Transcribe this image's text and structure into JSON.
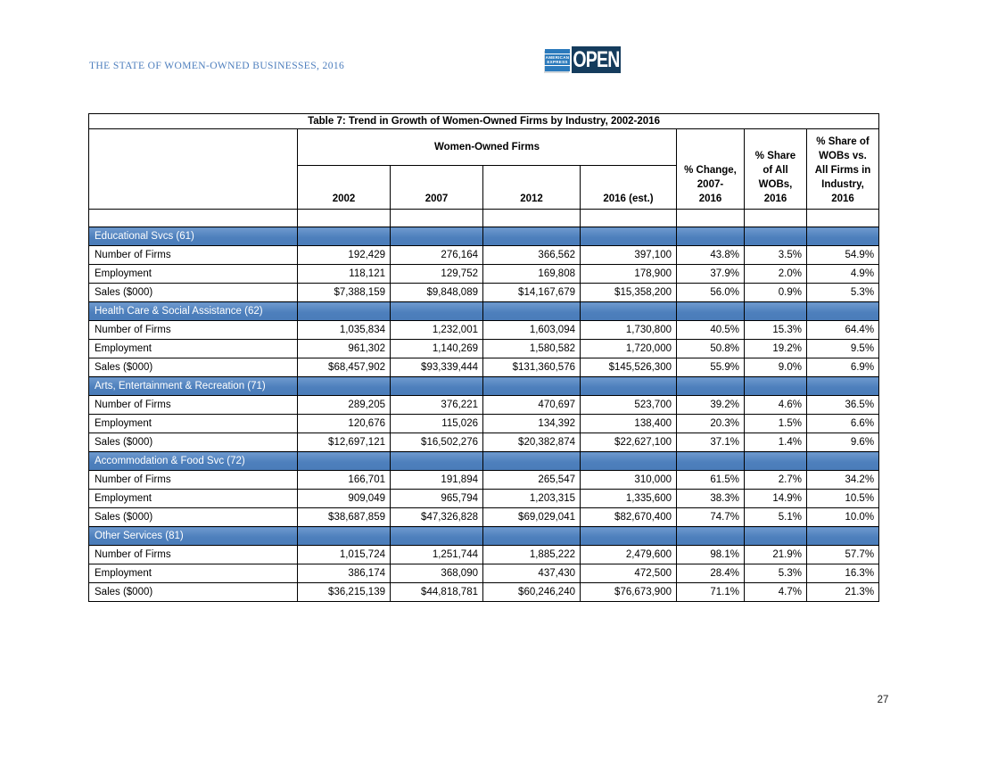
{
  "page": {
    "header_title": "THE STATE OF WOMEN-OWNED BUSINESSES, 2016",
    "page_number": "27",
    "logo": {
      "brand_line1": "AMERICAN",
      "brand_line2": "EXPRESS",
      "open_label": "OPEN"
    }
  },
  "colors": {
    "accent_blue": "#4F81BD",
    "header_text_blue": "#4D7EBD",
    "logo_bright_blue": "#2B7ABC",
    "logo_navy": "#153C5D",
    "band_text": "#FFFFFF",
    "table_border": "#000000"
  },
  "table": {
    "title": "Table 7: Trend in Growth of Women-Owned Firms by Industry, 2002-2016",
    "group_header": "Women-Owned Firms",
    "year_columns": [
      "2002",
      "2007",
      "2012",
      "2016 (est.)"
    ],
    "stat_columns": [
      "% Change,\n2007-\n2016",
      "% Share\nof All\nWOBs,\n2016",
      "% Share of\nWOBs vs.\nAll Firms in\nIndustry,\n2016"
    ],
    "sections": [
      {
        "label": "Educational Svcs (61)",
        "rows": [
          {
            "label": "Number of Firms",
            "values": [
              "192,429",
              "276,164",
              "366,562",
              "397,100",
              "43.8%",
              "3.5%",
              "54.9%"
            ]
          },
          {
            "label": "Employment",
            "values": [
              "118,121",
              "129,752",
              "169,808",
              "178,900",
              "37.9%",
              "2.0%",
              "4.9%"
            ]
          },
          {
            "label": "Sales ($000)",
            "values": [
              "$7,388,159",
              "$9,848,089",
              "$14,167,679",
              "$15,358,200",
              "56.0%",
              "0.9%",
              "5.3%"
            ]
          }
        ]
      },
      {
        "label": "Health Care & Social Assistance (62)",
        "rows": [
          {
            "label": "Number of Firms",
            "values": [
              "1,035,834",
              "1,232,001",
              "1,603,094",
              "1,730,800",
              "40.5%",
              "15.3%",
              "64.4%"
            ]
          },
          {
            "label": "Employment",
            "values": [
              "961,302",
              "1,140,269",
              "1,580,582",
              "1,720,000",
              "50.8%",
              "19.2%",
              "9.5%"
            ]
          },
          {
            "label": "Sales ($000)",
            "values": [
              "$68,457,902",
              "$93,339,444",
              "$131,360,576",
              "$145,526,300",
              "55.9%",
              "9.0%",
              "6.9%"
            ]
          }
        ]
      },
      {
        "label": "Arts, Entertainment & Recreation (71)",
        "rows": [
          {
            "label": "Number of Firms",
            "values": [
              "289,205",
              "376,221",
              "470,697",
              "523,700",
              "39.2%",
              "4.6%",
              "36.5%"
            ]
          },
          {
            "label": "Employment",
            "values": [
              "120,676",
              "115,026",
              "134,392",
              "138,400",
              "20.3%",
              "1.5%",
              "6.6%"
            ]
          },
          {
            "label": "Sales ($000)",
            "values": [
              "$12,697,121",
              "$16,502,276",
              "$20,382,874",
              "$22,627,100",
              "37.1%",
              "1.4%",
              "9.6%"
            ]
          }
        ]
      },
      {
        "label": "Accommodation & Food Svc (72)",
        "rows": [
          {
            "label": "Number of Firms",
            "values": [
              "166,701",
              "191,894",
              "265,547",
              "310,000",
              "61.5%",
              "2.7%",
              "34.2%"
            ]
          },
          {
            "label": "Employment",
            "values": [
              "909,049",
              "965,794",
              "1,203,315",
              "1,335,600",
              "38.3%",
              "14.9%",
              "10.5%"
            ]
          },
          {
            "label": "Sales ($000)",
            "values": [
              "$38,687,859",
              "$47,326,828",
              "$69,029,041",
              "$82,670,400",
              "74.7%",
              "5.1%",
              "10.0%"
            ]
          }
        ]
      },
      {
        "label": "Other Services (81)",
        "rows": [
          {
            "label": "Number of Firms",
            "values": [
              "1,015,724",
              "1,251,744",
              "1,885,222",
              "2,479,600",
              "98.1%",
              "21.9%",
              "57.7%"
            ]
          },
          {
            "label": "Employment",
            "values": [
              "386,174",
              "368,090",
              "437,430",
              "472,500",
              "28.4%",
              "5.3%",
              "16.3%"
            ]
          },
          {
            "label": "Sales ($000)",
            "values": [
              "$36,215,139",
              "$44,818,781",
              "$60,246,240",
              "$76,673,900",
              "71.1%",
              "4.7%",
              "21.3%"
            ]
          }
        ]
      }
    ]
  }
}
